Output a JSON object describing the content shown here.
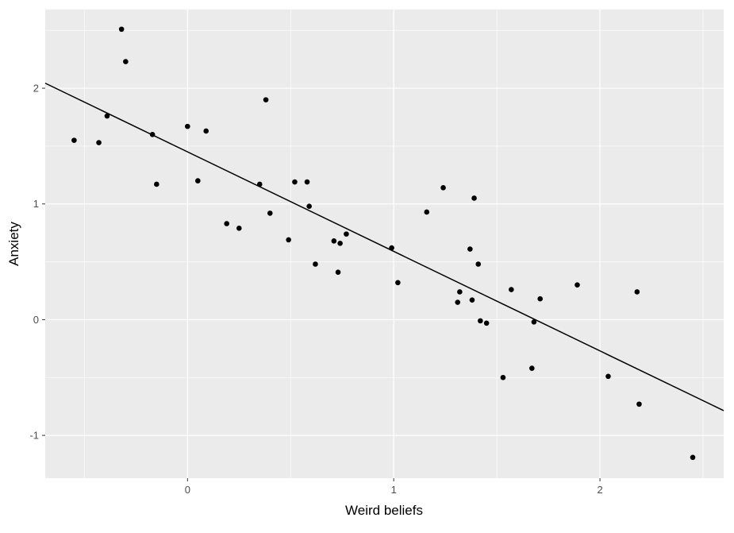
{
  "chart_data": {
    "type": "scatter",
    "xlabel": "Weird beliefs",
    "ylabel": "Anxiety",
    "xlim": [
      -0.69,
      2.6
    ],
    "ylim": [
      -1.37,
      2.68
    ],
    "xticks": [
      0,
      1,
      2
    ],
    "yticks": [
      -1,
      0,
      1,
      2
    ],
    "grid": true,
    "background": "#ebebeb",
    "grid_major_color": "#ffffff",
    "point_color": "#000000",
    "line_color": "#000000",
    "regression_line": {
      "intercept": 1.45,
      "slope": -0.86
    },
    "points": [
      {
        "x": -0.55,
        "y": 1.55
      },
      {
        "x": -0.43,
        "y": 1.53
      },
      {
        "x": -0.39,
        "y": 1.76
      },
      {
        "x": -0.32,
        "y": 2.51
      },
      {
        "x": -0.3,
        "y": 2.23
      },
      {
        "x": -0.17,
        "y": 1.6
      },
      {
        "x": -0.15,
        "y": 1.17
      },
      {
        "x": 0.0,
        "y": 1.67
      },
      {
        "x": 0.05,
        "y": 1.2
      },
      {
        "x": 0.09,
        "y": 1.63
      },
      {
        "x": 0.19,
        "y": 0.83
      },
      {
        "x": 0.25,
        "y": 0.79
      },
      {
        "x": 0.35,
        "y": 1.17
      },
      {
        "x": 0.38,
        "y": 1.9
      },
      {
        "x": 0.4,
        "y": 0.92
      },
      {
        "x": 0.49,
        "y": 0.69
      },
      {
        "x": 0.52,
        "y": 1.19
      },
      {
        "x": 0.58,
        "y": 1.19
      },
      {
        "x": 0.59,
        "y": 0.98
      },
      {
        "x": 0.62,
        "y": 0.48
      },
      {
        "x": 0.71,
        "y": 0.68
      },
      {
        "x": 0.73,
        "y": 0.41
      },
      {
        "x": 0.74,
        "y": 0.66
      },
      {
        "x": 0.77,
        "y": 0.74
      },
      {
        "x": 0.99,
        "y": 0.62
      },
      {
        "x": 1.02,
        "y": 0.32
      },
      {
        "x": 1.16,
        "y": 0.93
      },
      {
        "x": 1.24,
        "y": 1.14
      },
      {
        "x": 1.31,
        "y": 0.15
      },
      {
        "x": 1.32,
        "y": 0.24
      },
      {
        "x": 1.37,
        "y": 0.61
      },
      {
        "x": 1.38,
        "y": 0.17
      },
      {
        "x": 1.39,
        "y": 1.05
      },
      {
        "x": 1.41,
        "y": 0.48
      },
      {
        "x": 1.42,
        "y": -0.01
      },
      {
        "x": 1.45,
        "y": -0.03
      },
      {
        "x": 1.53,
        "y": -0.5
      },
      {
        "x": 1.57,
        "y": 0.26
      },
      {
        "x": 1.67,
        "y": -0.42
      },
      {
        "x": 1.68,
        "y": -0.02
      },
      {
        "x": 1.71,
        "y": 0.18
      },
      {
        "x": 1.89,
        "y": 0.3
      },
      {
        "x": 2.04,
        "y": -0.49
      },
      {
        "x": 2.18,
        "y": 0.24
      },
      {
        "x": 2.19,
        "y": -0.73
      },
      {
        "x": 2.45,
        "y": -1.19
      }
    ]
  }
}
